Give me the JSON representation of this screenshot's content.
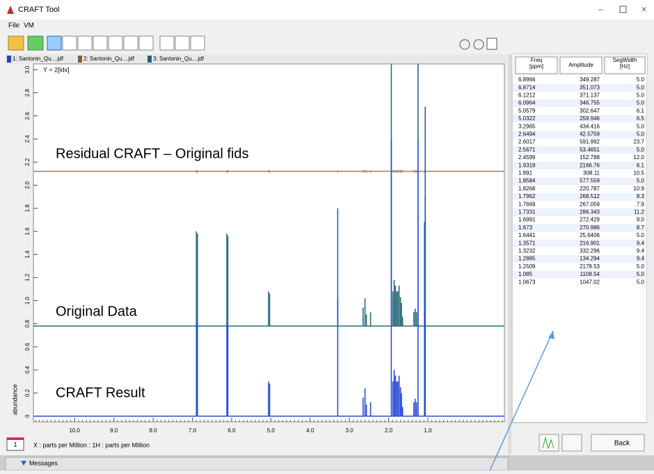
{
  "window": {
    "title": "CRAFT Tool"
  },
  "menu": [
    "File",
    "VM"
  ],
  "tabs": [
    "1: Santonin_Qu....jdf",
    "2: Santonin_Qu....jdf",
    "3: Santonin_Qu....jdf"
  ],
  "plot": {
    "formula": "Y = 2[idx]",
    "ylabel": "abundance",
    "xlabel": "X : parts per Million : 1H : parts per Million",
    "xlim": [
      11.05,
      -0.95
    ],
    "ylim": [
      -0.05,
      3.05
    ],
    "xticks": [
      {
        "value": 10,
        "label": "10.0"
      },
      {
        "value": 9,
        "label": "9.0"
      },
      {
        "value": 8,
        "label": "8.0"
      },
      {
        "value": 7,
        "label": "7.0"
      },
      {
        "value": 6,
        "label": "6.0"
      },
      {
        "value": 5,
        "label": "5.0"
      },
      {
        "value": 4,
        "label": "4.0"
      },
      {
        "value": 3,
        "label": "3.0"
      },
      {
        "value": 2,
        "label": "2.0"
      },
      {
        "value": 1,
        "label": "1.0"
      }
    ],
    "yticks": [
      0,
      0.2,
      0.4,
      0.6,
      0.8,
      {
        "value": 1,
        "label": "1.0"
      },
      1.2,
      1.4,
      1.6,
      1.8,
      {
        "value": 2,
        "label": "2.0"
      },
      2.2,
      2.4,
      2.6,
      2.8,
      {
        "value": 3,
        "label": "3.0"
      }
    ],
    "traces": [
      {
        "name": "Residual CRAFT – Original fids",
        "baseline": 2.12,
        "color": "#a08060",
        "peak_scale": 0
      },
      {
        "name": "Original Data",
        "baseline": 0.78,
        "color": "#2a6a7a",
        "peak_scale": 1
      },
      {
        "name": "CRAFT Result",
        "baseline": 0,
        "color": "#2a4adb",
        "peak_scale": 1
      }
    ],
    "peaks": {
      "ppm": [
        6.8966,
        6.8714,
        6.1212,
        6.0964,
        5.0579,
        5.0322,
        3.2965,
        2.6494,
        2.6017,
        2.5671,
        2.4599,
        1.9318,
        1.891,
        1.8584,
        1.8268,
        1.7962,
        1.7669,
        1.7331,
        1.6991,
        1.673,
        1.6441,
        1.3571,
        1.3232,
        1.2885,
        1.2509,
        1.085,
        1.0673
      ],
      "height": [
        0.82,
        0.8,
        0.8,
        0.78,
        0.3,
        0.28,
        1.02,
        0.16,
        0.24,
        0.1,
        0.12,
        2.4,
        0.3,
        0.4,
        0.35,
        0.3,
        0.3,
        0.35,
        0.25,
        0.2,
        0.08,
        0.12,
        0.15,
        0.12,
        2.4,
        0.9,
        1.9
      ]
    }
  },
  "table": {
    "headers": [
      "Freq\n[ppm]",
      "Amplitude",
      "SegWidth\n[Hz]"
    ],
    "rows": [
      [
        "6.8966",
        "349.287",
        "5.0"
      ],
      [
        "6.8714",
        "351.073",
        "5.0"
      ],
      [
        "6.1212",
        "371.137",
        "5.0"
      ],
      [
        "6.0964",
        "346.755",
        "5.0"
      ],
      [
        "5.0579",
        "302.647",
        "6.1"
      ],
      [
        "5.0322",
        "259.946",
        "6.5"
      ],
      [
        "3.2965",
        "434.416",
        "5.0"
      ],
      [
        "2.6494",
        "42.5759",
        "5.0"
      ],
      [
        "2.6017",
        "591.992",
        "23.7"
      ],
      [
        "2.5671",
        "53.4651",
        "5.0"
      ],
      [
        "2.4599",
        "152.788",
        "12.0"
      ],
      [
        "1.9318",
        "2166.76",
        "6.1"
      ],
      [
        "1.891",
        "308.11",
        "10.5"
      ],
      [
        "1.8584",
        "577.559",
        "5.0"
      ],
      [
        "1.8268",
        "220.787",
        "10.9"
      ],
      [
        "1.7962",
        "268.512",
        "8.3"
      ],
      [
        "1.7669",
        "267.059",
        "7.9"
      ],
      [
        "1.7331",
        "286.343",
        "11.2"
      ],
      [
        "1.6991",
        "272.429",
        "9.0"
      ],
      [
        "1.673",
        "270.986",
        "8.7"
      ],
      [
        "1.6441",
        "25.6406",
        "5.0"
      ],
      [
        "1.3571",
        "216.901",
        "9.4"
      ],
      [
        "1.3232",
        "332.296",
        "9.4"
      ],
      [
        "1.2885",
        "134.294",
        "9.4"
      ],
      [
        "1.2509",
        "2178.53",
        "5.0"
      ],
      [
        "1.085",
        "1108.54",
        "5.0"
      ],
      [
        "1.0673",
        "1047.02",
        "5.0"
      ]
    ]
  },
  "buttons": {
    "back": "Back"
  },
  "statusbar": {
    "messages": "Messages",
    "page": "1"
  }
}
